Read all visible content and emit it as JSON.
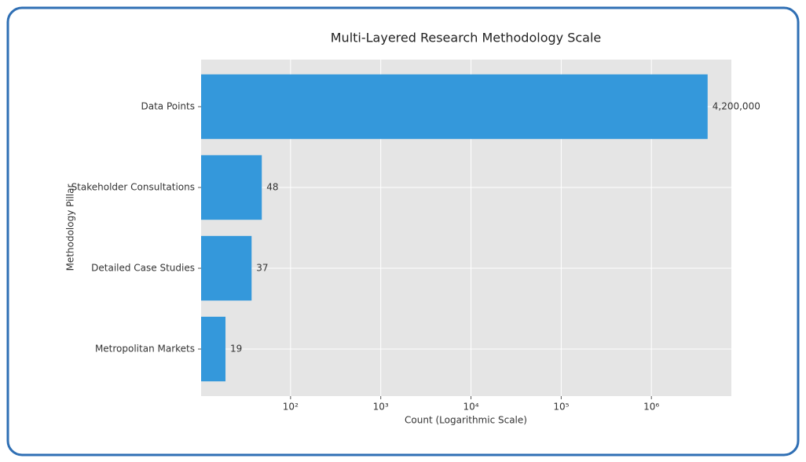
{
  "chart_data": {
    "type": "barh",
    "title": "Multi-Layered Research Methodology Scale",
    "xlabel": "Count (Logarithmic Scale)",
    "ylabel": "Methodology Pillar",
    "categories": [
      "Data Points",
      "Stakeholder Consultations",
      "Detailed Case Studies",
      "Metropolitan Markets"
    ],
    "values": [
      4200000,
      48,
      37,
      19
    ],
    "value_labels": [
      "4,200,000",
      "48",
      "37",
      "19"
    ],
    "color": "#3498db",
    "xscale": "log",
    "xlim": [
      10.2,
      7700000
    ],
    "xticks": [
      {
        "value": 100,
        "label": "10²"
      },
      {
        "value": 1000,
        "label": "10³"
      },
      {
        "value": 10000,
        "label": "10⁴"
      },
      {
        "value": 100000,
        "label": "10⁵"
      },
      {
        "value": 1000000,
        "label": "10⁶"
      }
    ],
    "grid": true
  }
}
